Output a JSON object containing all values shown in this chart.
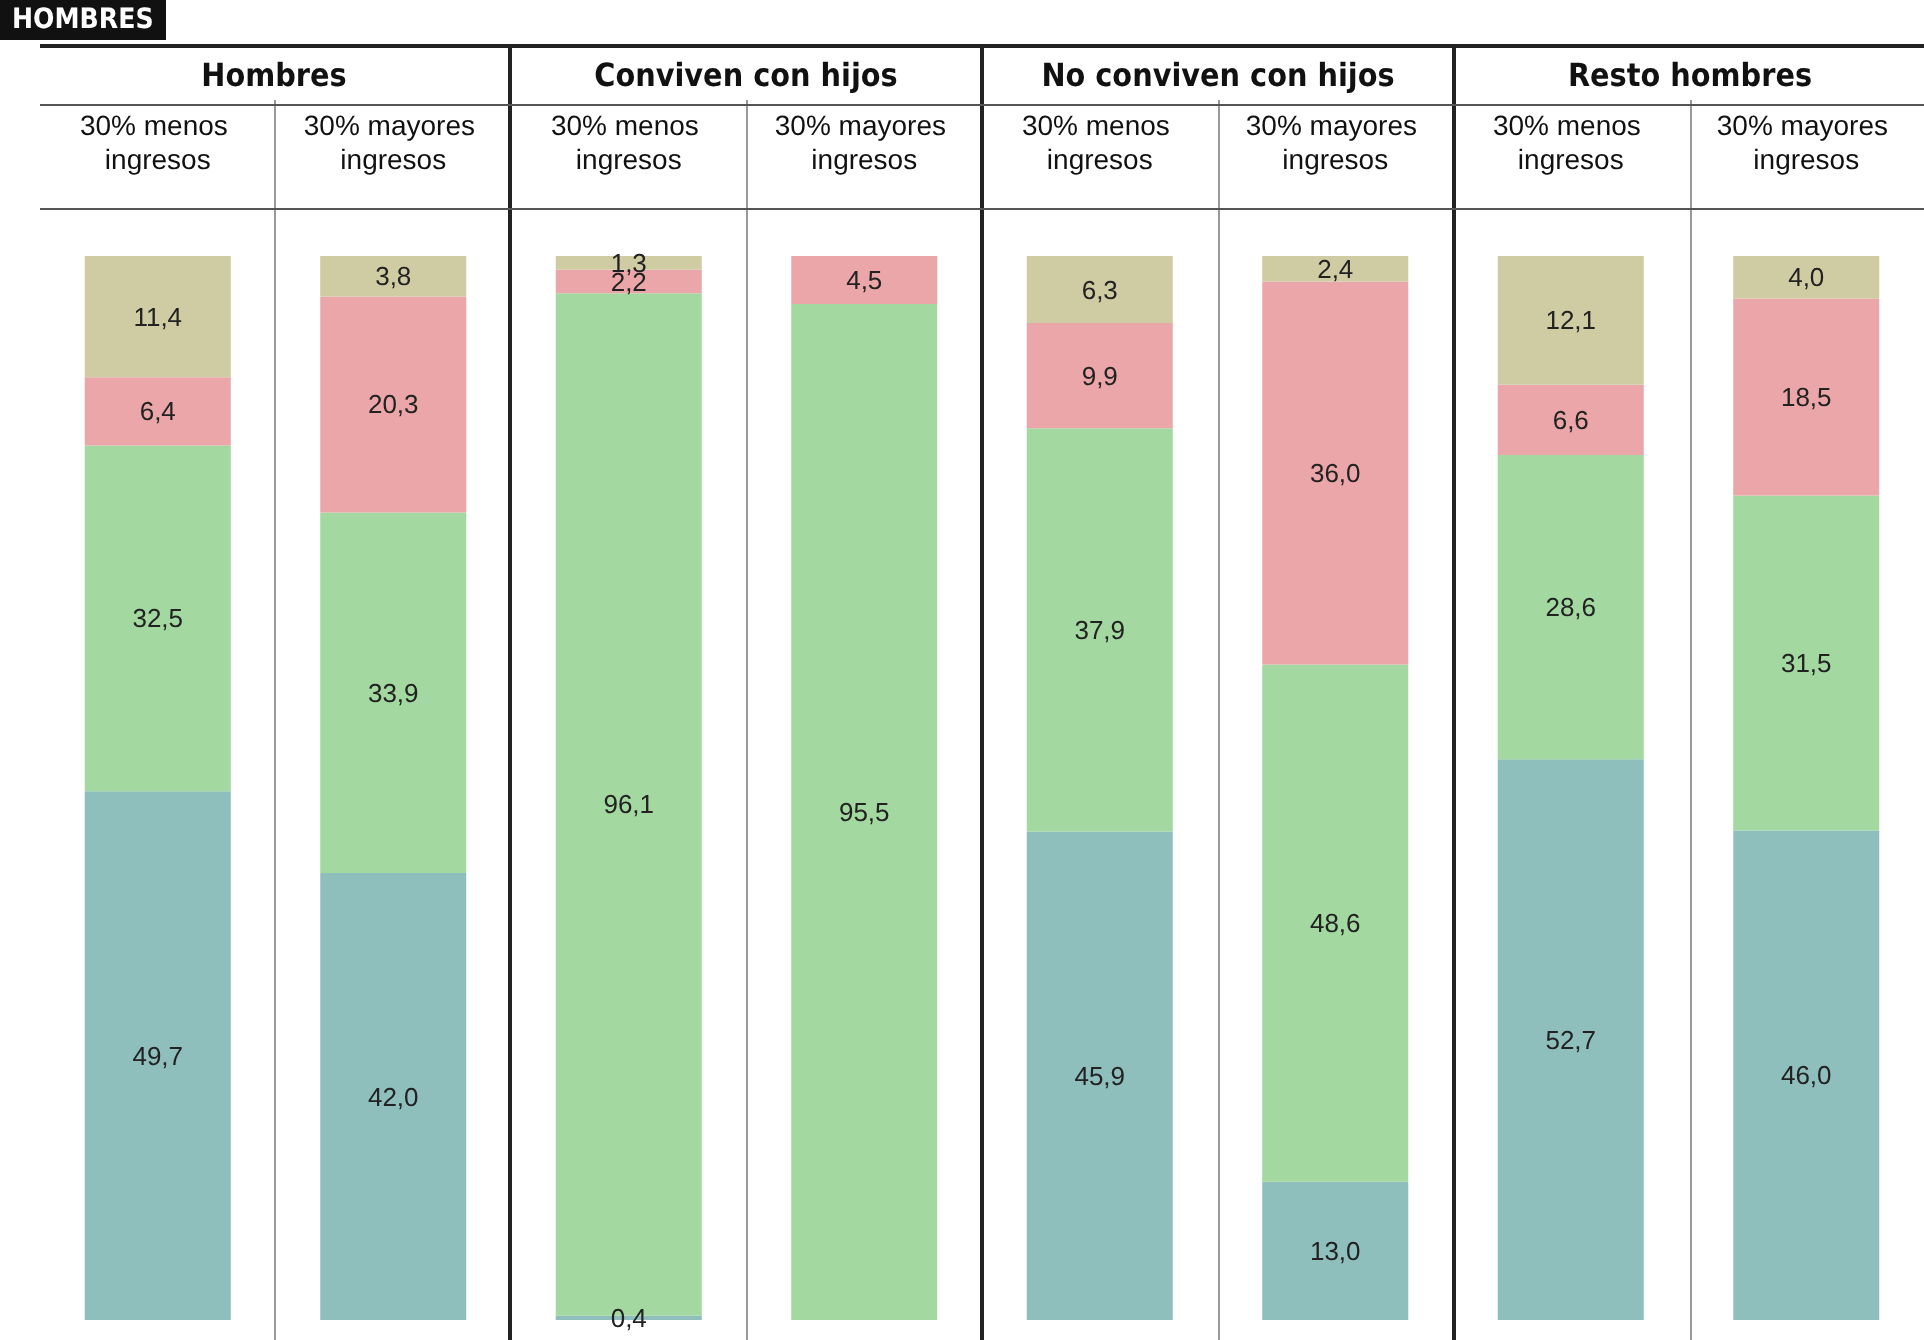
{
  "chart_data": {
    "type": "bar",
    "title": "HOMBRES",
    "stacked": true,
    "annotations": [
      "Hombres",
      "Conviven con hijos",
      "No conviven con hijos",
      "Resto hombres"
    ],
    "categories": [
      "30% menos ingresos",
      "30% mayores ingresos",
      "30% menos ingresos",
      "30% mayores ingresos",
      "30% menos ingresos",
      "30% mayores ingresos",
      "30% menos ingresos",
      "30% mayores ingresos"
    ],
    "series": [
      {
        "color": "#8fbfbd",
        "values": [
          49.7,
          42.0,
          0.4,
          null,
          45.9,
          13.0,
          52.7,
          46.0
        ],
        "value_labels": [
          "49,7",
          "42,0",
          "0,4",
          null,
          "45,9",
          "13,0",
          "52,7",
          "46,0"
        ]
      },
      {
        "color": "#a3d8a0",
        "values": [
          32.5,
          33.9,
          96.1,
          95.5,
          37.9,
          48.6,
          28.6,
          31.5
        ],
        "value_labels": [
          "32,5",
          "33,9",
          "96,1",
          "95,5",
          "37,9",
          "48,6",
          "28,6",
          "31,5"
        ]
      },
      {
        "color": "#eaa6a8",
        "values": [
          6.4,
          20.3,
          2.2,
          4.5,
          9.9,
          36.0,
          6.6,
          18.5
        ],
        "value_labels": [
          "6,4",
          "20,3",
          "2,2",
          "4,5",
          "9,9",
          "36,0",
          "6,6",
          "18,5"
        ]
      },
      {
        "color": "#cfcba3",
        "values": [
          11.4,
          3.8,
          1.3,
          null,
          6.3,
          2.4,
          12.1,
          4.0
        ],
        "value_labels": [
          "11,4",
          "3,8",
          "1,3",
          null,
          "6,3",
          "2,4",
          "12,1",
          "4,0"
        ]
      }
    ]
  }
}
